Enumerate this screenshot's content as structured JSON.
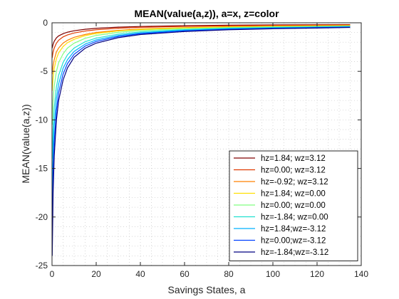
{
  "chart_data": {
    "type": "line",
    "title": "MEAN(value(a,z)), a=x, z=color",
    "xlabel": "Savings States, a",
    "ylabel": "MEAN(value(a,z))",
    "xlim": [
      0,
      140
    ],
    "ylim": [
      -25,
      0
    ],
    "xticks": [
      0,
      20,
      40,
      60,
      80,
      100,
      120,
      140
    ],
    "yticks": [
      -25,
      -20,
      -15,
      -10,
      -5,
      0
    ],
    "xtick_labels": [
      "0",
      "20",
      "40",
      "60",
      "80",
      "100",
      "120",
      "140"
    ],
    "ytick_labels": [
      "-25",
      "-20",
      "-15",
      "-10",
      "-5",
      "0"
    ],
    "grid": "minor-dotted",
    "legend_position": "bottom-right",
    "x": [
      0.1,
      0.5,
      1,
      2,
      3,
      5,
      7,
      10,
      15,
      20,
      30,
      40,
      60,
      80,
      100,
      120,
      135
    ],
    "series": [
      {
        "name": "hz=1.84; wz=3.12",
        "color": "#800000",
        "values": [
          -2.6,
          -2.2,
          -1.9,
          -1.55,
          -1.35,
          -1.12,
          -0.97,
          -0.82,
          -0.67,
          -0.57,
          -0.45,
          -0.38,
          -0.3,
          -0.25,
          -0.22,
          -0.2,
          -0.19
        ]
      },
      {
        "name": "hz=0.00; wz=3.12",
        "color": "#e03a00",
        "values": [
          -3.6,
          -3.0,
          -2.6,
          -2.1,
          -1.8,
          -1.45,
          -1.25,
          -1.05,
          -0.85,
          -0.72,
          -0.56,
          -0.47,
          -0.37,
          -0.31,
          -0.27,
          -0.24,
          -0.22
        ]
      },
      {
        "name": "hz=-0.92; wz=3.12",
        "color": "#ff8000",
        "values": [
          -5.3,
          -4.4,
          -3.8,
          -3.0,
          -2.6,
          -2.1,
          -1.8,
          -1.5,
          -1.2,
          -1.0,
          -0.78,
          -0.64,
          -0.49,
          -0.4,
          -0.35,
          -0.31,
          -0.28
        ]
      },
      {
        "name": "hz=1.84; wz=0.00",
        "color": "#ffe000",
        "values": [
          -7.0,
          -5.6,
          -4.7,
          -3.7,
          -3.1,
          -2.45,
          -2.05,
          -1.7,
          -1.32,
          -1.1,
          -0.84,
          -0.69,
          -0.52,
          -0.43,
          -0.37,
          -0.33,
          -0.3
        ]
      },
      {
        "name": "hz=0.00; wz=0.00",
        "color": "#80ff80",
        "values": [
          -10.5,
          -8.0,
          -6.5,
          -5.0,
          -4.1,
          -3.2,
          -2.6,
          -2.1,
          -1.6,
          -1.3,
          -0.98,
          -0.8,
          -0.6,
          -0.49,
          -0.42,
          -0.37,
          -0.34
        ]
      },
      {
        "name": "hz=-1.84; wz=0.00",
        "color": "#20e0d0",
        "values": [
          -14.0,
          -10.8,
          -8.7,
          -6.6,
          -5.4,
          -4.1,
          -3.3,
          -2.6,
          -1.95,
          -1.58,
          -1.17,
          -0.94,
          -0.7,
          -0.56,
          -0.48,
          -0.42,
          -0.38
        ]
      },
      {
        "name": "hz=1.84;wz=-3.12",
        "color": "#00b0ff",
        "values": [
          -17.5,
          -13.2,
          -10.5,
          -7.8,
          -6.3,
          -4.7,
          -3.8,
          -2.95,
          -2.2,
          -1.77,
          -1.3,
          -1.04,
          -0.77,
          -0.62,
          -0.53,
          -0.46,
          -0.42
        ]
      },
      {
        "name": "hz=0.00;wz=-3.12",
        "color": "#0040ff",
        "values": [
          -21.0,
          -15.5,
          -12.2,
          -9.0,
          -7.2,
          -5.3,
          -4.2,
          -3.25,
          -2.4,
          -1.93,
          -1.41,
          -1.12,
          -0.83,
          -0.67,
          -0.57,
          -0.5,
          -0.45
        ]
      },
      {
        "name": "hz=-1.84;wz=-3.12",
        "color": "#000080",
        "values": [
          -24.0,
          -17.5,
          -13.7,
          -10.0,
          -8.0,
          -5.9,
          -4.65,
          -3.55,
          -2.62,
          -2.1,
          -1.53,
          -1.21,
          -0.9,
          -0.72,
          -0.61,
          -0.54,
          -0.48
        ]
      }
    ]
  }
}
